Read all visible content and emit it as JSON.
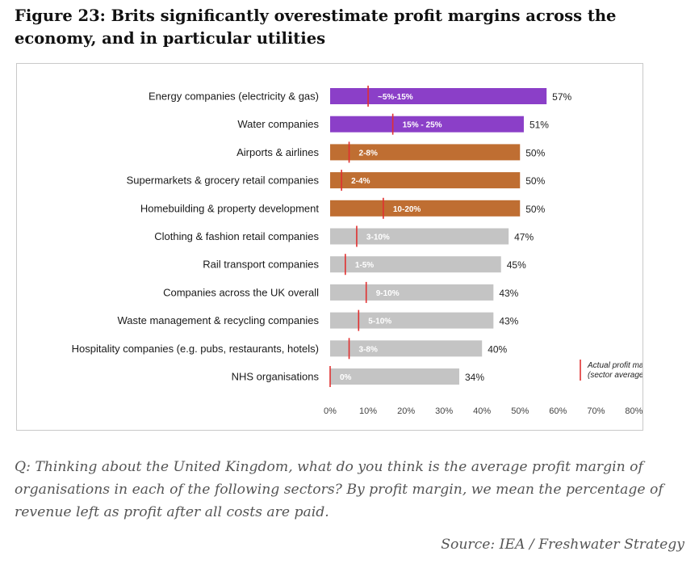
{
  "figure": {
    "title": "Figure 23: Brits significantly overestimate profit margins across the economy, and in particular utilities",
    "question": "Q: Thinking about the United Kingdom, what do you think is the average profit margin of organisations in each of the following sectors? By profit margin, we mean the percentage of revenue left as profit after all costs are paid.",
    "source": "Source: IEA / Freshwater Strategy"
  },
  "chart_data": {
    "type": "bar",
    "orientation": "horizontal",
    "xlim": [
      0,
      80
    ],
    "ticks": [
      "0%",
      "10%",
      "20%",
      "30%",
      "40%",
      "50%",
      "60%",
      "70%",
      "80%"
    ],
    "legend": {
      "label": "Actual profit margin",
      "sublabel": "(sector average)",
      "placement": "right",
      "marker_color": "#e03030"
    },
    "colors": {
      "purple": "#8b3fc8",
      "orange": "#bf6e32",
      "gray": "#c4c4c4",
      "marker": "#e03030"
    },
    "bars": [
      {
        "category": "Energy companies (electricity & gas)",
        "value": 57,
        "value_label": "57%",
        "actual": 10,
        "range_label": "~5%-15%",
        "color": "purple"
      },
      {
        "category": "Water companies",
        "value": 51,
        "value_label": "51%",
        "actual": 16.5,
        "range_label": "15% - 25%",
        "color": "purple"
      },
      {
        "category": "Airports & airlines",
        "value": 50,
        "value_label": "50%",
        "actual": 5,
        "range_label": "2-8%",
        "color": "orange"
      },
      {
        "category": "Supermarkets & grocery retail companies",
        "value": 50,
        "value_label": "50%",
        "actual": 3,
        "range_label": "2-4%",
        "color": "orange"
      },
      {
        "category": "Homebuilding & property development",
        "value": 50,
        "value_label": "50%",
        "actual": 14,
        "range_label": "10-20%",
        "color": "orange"
      },
      {
        "category": "Clothing & fashion retail companies",
        "value": 47,
        "value_label": "47%",
        "actual": 7,
        "range_label": "3-10%",
        "color": "gray"
      },
      {
        "category": "Rail transport companies",
        "value": 45,
        "value_label": "45%",
        "actual": 4,
        "range_label": "1-5%",
        "color": "gray"
      },
      {
        "category": "Companies across the UK overall",
        "value": 43,
        "value_label": "43%",
        "actual": 9.5,
        "range_label": "9-10%",
        "color": "gray"
      },
      {
        "category": "Waste management & recycling companies",
        "value": 43,
        "value_label": "43%",
        "actual": 7.5,
        "range_label": "5-10%",
        "color": "gray"
      },
      {
        "category": "Hospitality companies (e.g. pubs, restaurants, hotels)",
        "value": 40,
        "value_label": "40%",
        "actual": 5,
        "range_label": "3-8%",
        "color": "gray"
      },
      {
        "category": "NHS organisations",
        "value": 34,
        "value_label": "34%",
        "actual": 0,
        "range_label": "0%",
        "color": "gray"
      }
    ]
  }
}
